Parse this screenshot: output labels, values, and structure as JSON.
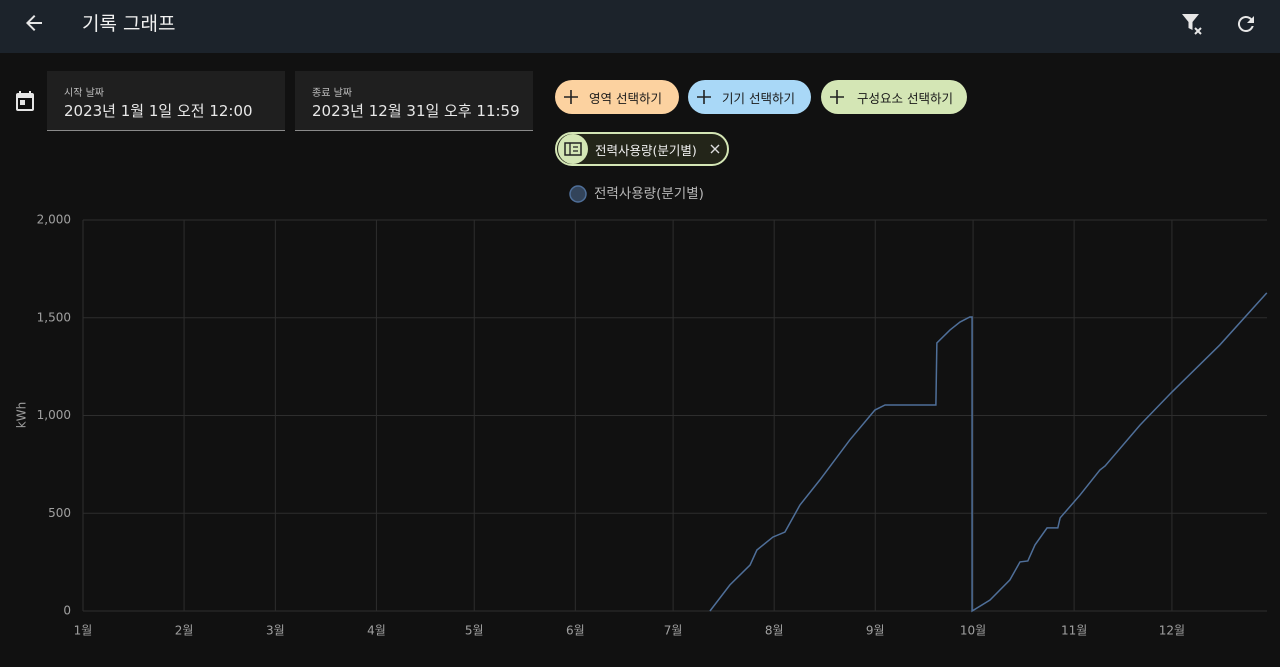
{
  "header": {
    "title": "기록 그래프"
  },
  "date_range": {
    "start_label": "시작 날짜",
    "start_value": "2023년 1월 1일 오전 12:00",
    "end_label": "종료 날짜",
    "end_value": "2023년 12월 31일 오후 11:59"
  },
  "targets": {
    "buttons": [
      "영역 선택하기",
      "기기 선택하기",
      "구성요소 선택하기"
    ],
    "selected": [
      "전력사용량(분기별)"
    ]
  },
  "chart_data": {
    "type": "line",
    "y_label": "kWh",
    "x": [
      192.3,
      198.4,
      204.6,
      206.7,
      211.6,
      215.3,
      219.9,
      226.0,
      235.2,
      242.9,
      246.0,
      261.6,
      261.9,
      265.9,
      269.0,
      272.0,
      272.7,
      272.7,
      278.2,
      284.3,
      287.4,
      289.8,
      292.0,
      295.7,
      299.0,
      299.7,
      305.8,
      311.9,
      313.5,
      324.2,
      334.0,
      348.7,
      363.1
    ],
    "series": [
      {
        "name": "전력사용량(분기별)",
        "color": "#4f6f99",
        "values": [
          0,
          133,
          235,
          312,
          378,
          404,
          542,
          670,
          875,
          1028,
          1054,
          1054,
          1371,
          1437,
          1478,
          1504,
          1504,
          0,
          56,
          159,
          251,
          256,
          338,
          425,
          425,
          476,
          593,
          721,
          742,
          951,
          1120,
          1361,
          1627
        ]
      }
    ],
    "xlim": [
      0,
      365
    ],
    "xticks": [
      {
        "value": 0,
        "label": "1월"
      },
      {
        "value": 31,
        "label": "2월"
      },
      {
        "value": 59,
        "label": "3월"
      },
      {
        "value": 90,
        "label": "4월"
      },
      {
        "value": 120,
        "label": "5월"
      },
      {
        "value": 151,
        "label": "6월"
      },
      {
        "value": 181,
        "label": "7월"
      },
      {
        "value": 212,
        "label": "8월"
      },
      {
        "value": 243,
        "label": "9월"
      },
      {
        "value": 273,
        "label": "10월"
      },
      {
        "value": 304,
        "label": "11월"
      },
      {
        "value": 334,
        "label": "12월"
      }
    ],
    "ylim": [
      0,
      2000
    ],
    "yticks": [
      0,
      500,
      {
        "value": 1000,
        "label": "1,000"
      },
      {
        "value": 1500,
        "label": "1,500"
      },
      {
        "value": 2000,
        "label": "2,000"
      }
    ],
    "grid": true
  }
}
